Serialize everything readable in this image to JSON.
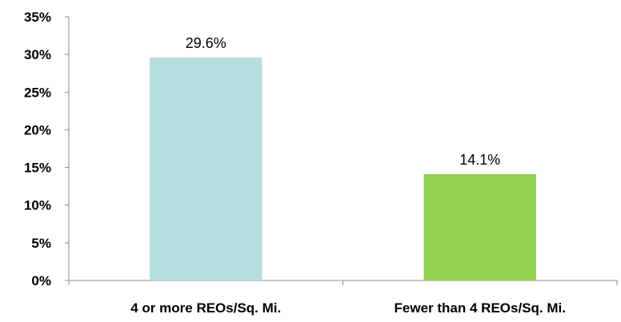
{
  "chart_data": {
    "type": "bar",
    "title": "",
    "xlabel": "",
    "ylabel": "",
    "categories": [
      "4 or more REOs/Sq. Mi.",
      "Fewer than 4 REOs/Sq. Mi."
    ],
    "values": [
      29.6,
      14.1
    ],
    "data_labels": [
      "29.6%",
      "14.1%"
    ],
    "bar_colors": [
      "#b7dfe0",
      "#92d050"
    ],
    "ylim": [
      0,
      35
    ],
    "y_ticks": [
      0,
      5,
      10,
      15,
      20,
      25,
      30,
      35
    ],
    "y_tick_labels": [
      "0%",
      "5%",
      "10%",
      "15%",
      "20%",
      "25%",
      "30%",
      "35%"
    ],
    "grid": false,
    "legend": "none"
  }
}
